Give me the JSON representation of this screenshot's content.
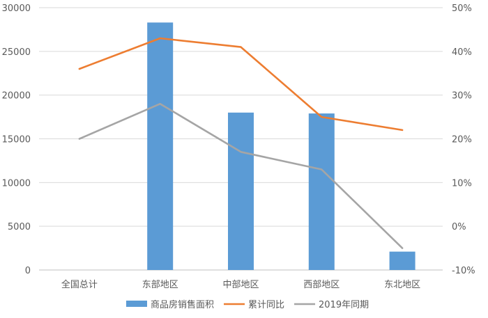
{
  "chart_data": {
    "type": "bar",
    "categories": [
      "全国总计",
      "东部地区",
      "中部地区",
      "西部地区",
      "东北地区"
    ],
    "series": [
      {
        "name": "商品房销售面积",
        "type": "bar",
        "axis": "left",
        "color": "#5B9BD5",
        "values": [
          null,
          28300,
          18000,
          17900,
          2100
        ]
      },
      {
        "name": "累计同比",
        "type": "line",
        "axis": "right",
        "color": "#ED7D31",
        "values": [
          36.0,
          43.0,
          41.0,
          25.0,
          22.0
        ]
      },
      {
        "name": "2019年同期",
        "type": "line",
        "axis": "right",
        "color": "#A5A5A5",
        "values": [
          20.0,
          28.0,
          17.0,
          13.0,
          -5.0
        ]
      }
    ],
    "y_left": {
      "min": 0,
      "max": 30000,
      "ticks": [
        0,
        5000,
        10000,
        15000,
        20000,
        25000,
        30000
      ],
      "tick_labels": [
        "0",
        "5000",
        "10000",
        "15000",
        "20000",
        "25000",
        "30000"
      ]
    },
    "y_right": {
      "min": -10,
      "max": 50,
      "ticks": [
        -10,
        0,
        10,
        20,
        30,
        40,
        50
      ],
      "tick_labels": [
        "-10%",
        "0%",
        "10%",
        "20%",
        "30%",
        "40%",
        "50%"
      ]
    },
    "grid": true,
    "legend_position": "bottom"
  }
}
